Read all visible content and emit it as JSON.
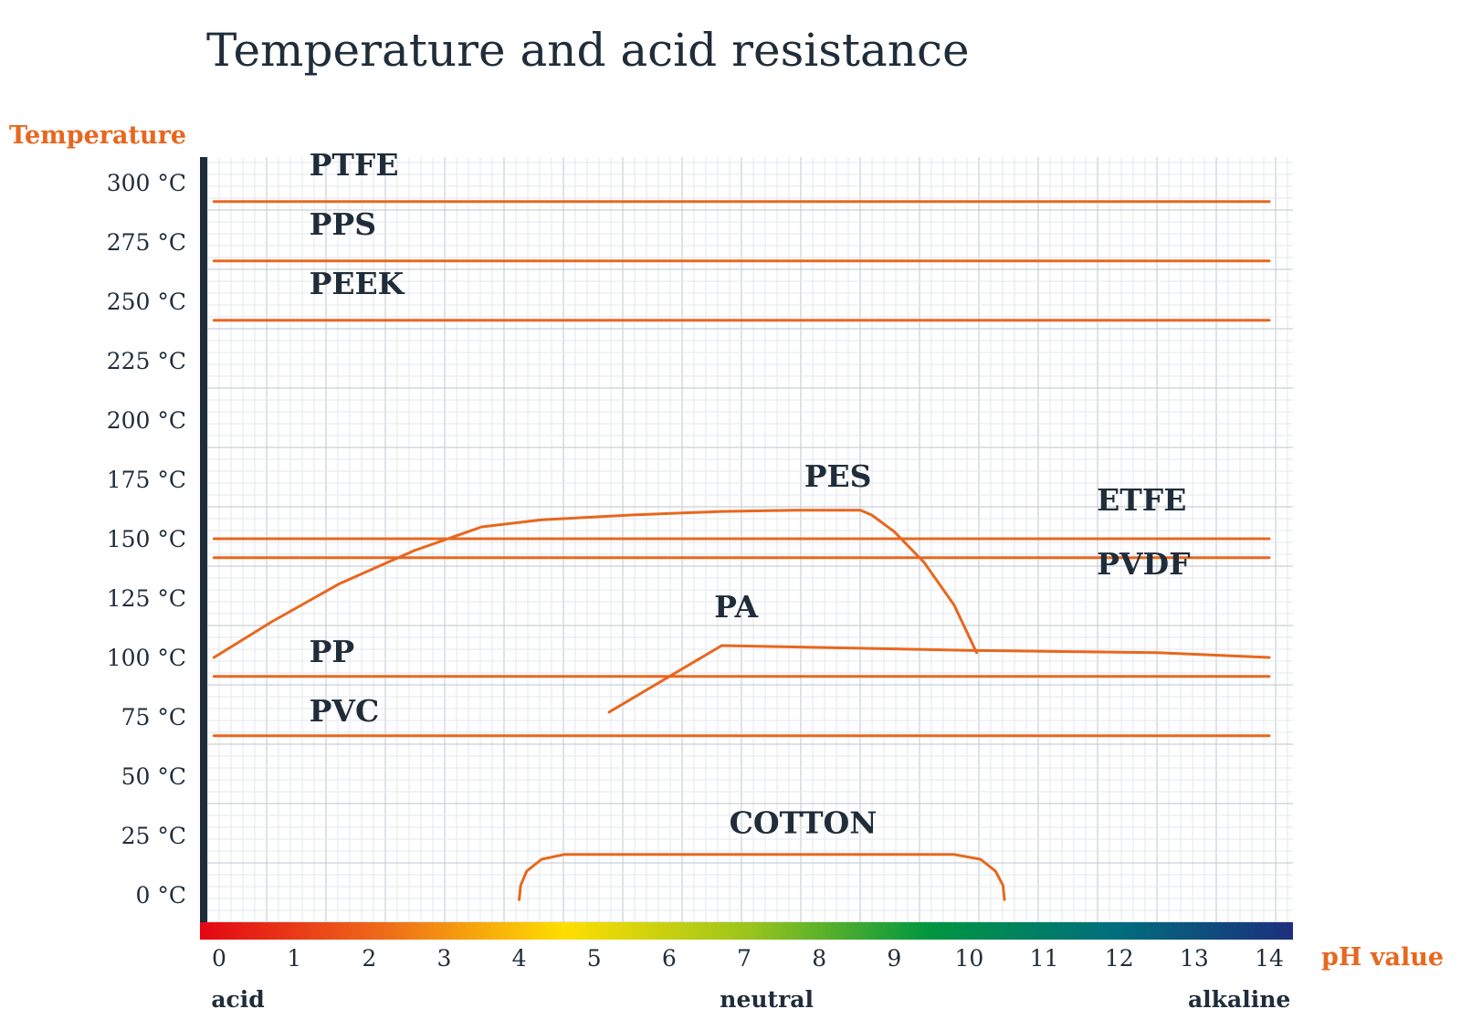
{
  "chart_data": {
    "type": "line",
    "title": "Temperature and acid resistance",
    "ylabel": "Temperature",
    "xlabel": "pH value",
    "xlim": [
      0,
      14
    ],
    "ylim": [
      0,
      300
    ],
    "grid": true,
    "x_ticks": [
      "0",
      "1",
      "2",
      "3",
      "4",
      "5",
      "6",
      "7",
      "8",
      "9",
      "10",
      "11",
      "12",
      "13",
      "14"
    ],
    "y_ticks": [
      "300 °C",
      "275 °C",
      "250 °C",
      "225 °C",
      "200 °C",
      "175 °C",
      "150 °C",
      "125 °C",
      "100 °C",
      "75 °C",
      "50 °C",
      "25 °C",
      "0 °C"
    ],
    "y_tick_values": [
      300,
      275,
      250,
      225,
      200,
      175,
      150,
      125,
      100,
      75,
      50,
      25,
      0
    ],
    "x_regions": [
      {
        "label": "acid",
        "x": 0.25
      },
      {
        "label": "neutral",
        "x": 7.3
      },
      {
        "label": "alkaline",
        "x": 13.6
      }
    ],
    "ph_gradient": [
      "#e30613",
      "#ee6a1a",
      "#ffde00",
      "#9cc51c",
      "#009640",
      "#006f7d",
      "#1d2f7d"
    ],
    "accent_color": "#e8671e",
    "text_color": "#1f2d3a",
    "series": [
      {
        "name": "PTFE",
        "label_pos": [
          1.2,
          303
        ],
        "points": [
          [
            -0.07,
            292
          ],
          [
            14,
            292
          ]
        ]
      },
      {
        "name": "PPS",
        "label_pos": [
          1.2,
          278
        ],
        "points": [
          [
            -0.07,
            267
          ],
          [
            14,
            267
          ]
        ]
      },
      {
        "name": "PEEK",
        "label_pos": [
          1.2,
          253
        ],
        "points": [
          [
            -0.07,
            242
          ],
          [
            14,
            242
          ]
        ]
      },
      {
        "name": "PES",
        "label_pos": [
          7.8,
          172
        ],
        "points": [
          [
            -0.07,
            100
          ],
          [
            0.7,
            115
          ],
          [
            1.6,
            131
          ],
          [
            2.6,
            145
          ],
          [
            3.5,
            155
          ],
          [
            4.3,
            158
          ],
          [
            5.5,
            160
          ],
          [
            6.7,
            161.5
          ],
          [
            7.7,
            162
          ],
          [
            8.55,
            162
          ],
          [
            8.7,
            160
          ],
          [
            9.0,
            153
          ],
          [
            9.4,
            140
          ],
          [
            9.8,
            122
          ],
          [
            10.1,
            102
          ]
        ]
      },
      {
        "name": "ETFE",
        "label_pos": [
          11.7,
          162
        ],
        "points": [
          [
            -0.07,
            150
          ],
          [
            14,
            150
          ]
        ]
      },
      {
        "name": "PVDF",
        "label_pos": [
          11.7,
          135
        ],
        "points": [
          [
            -0.07,
            142
          ],
          [
            14,
            142
          ]
        ]
      },
      {
        "name": "PA",
        "label_pos": [
          6.6,
          117
        ],
        "points": [
          [
            5.2,
            77
          ],
          [
            6.7,
            105
          ],
          [
            10,
            103
          ],
          [
            12.5,
            102
          ],
          [
            14,
            100
          ]
        ]
      },
      {
        "name": "PP",
        "label_pos": [
          1.2,
          98
        ],
        "points": [
          [
            -0.07,
            92
          ],
          [
            14,
            92
          ]
        ]
      },
      {
        "name": "PVC",
        "label_pos": [
          1.2,
          73
        ],
        "points": [
          [
            -0.07,
            67
          ],
          [
            14,
            67
          ]
        ]
      },
      {
        "name": "COTTON",
        "label_pos": [
          6.8,
          26
        ],
        "points": [
          [
            4.0,
            -2
          ],
          [
            4.02,
            4
          ],
          [
            4.1,
            10
          ],
          [
            4.3,
            15
          ],
          [
            4.6,
            17
          ],
          [
            9.8,
            17
          ],
          [
            10.15,
            15
          ],
          [
            10.35,
            10
          ],
          [
            10.45,
            4
          ],
          [
            10.47,
            -2
          ]
        ]
      }
    ]
  }
}
